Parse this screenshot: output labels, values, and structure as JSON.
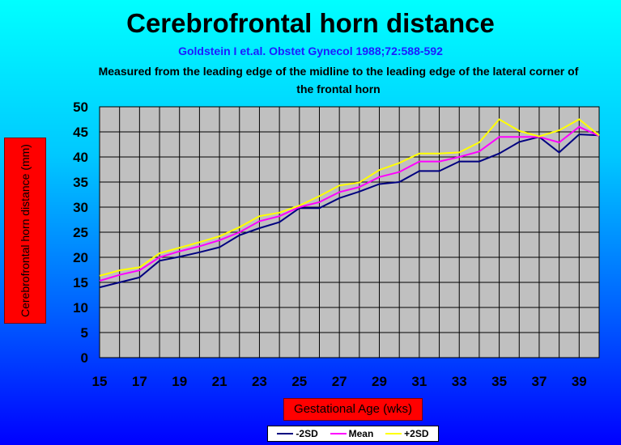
{
  "chart_data": {
    "type": "line",
    "title": "Cerebrofrontal horn distance",
    "subtitle": "Goldstein I et.al. Obstet Gynecol 1988;72:588-592",
    "description": "Measured from the leading edge of the midline to the leading edge of the lateral corner of the frontal horn",
    "ylabel": "Cerebrofrontal horn distance (mm)",
    "xlabel": "Gestational Age (wks)",
    "ylim": [
      0,
      50
    ],
    "xlim": [
      15,
      40
    ],
    "y_ticks": [
      0,
      5,
      10,
      15,
      20,
      25,
      30,
      35,
      40,
      45,
      50
    ],
    "x_ticks": [
      15,
      17,
      19,
      21,
      23,
      25,
      27,
      29,
      31,
      33,
      35,
      37,
      39
    ],
    "grid": true,
    "legend_position": "bottom",
    "x": [
      15,
      16,
      17,
      18,
      19,
      20,
      21,
      22,
      23,
      24,
      25,
      26,
      27,
      28,
      29,
      30,
      31,
      32,
      33,
      34,
      35,
      36,
      37,
      38,
      39,
      40
    ],
    "series": [
      {
        "name": "-2SD",
        "color": "#000080",
        "values": [
          14,
          15,
          16,
          19.3,
          20.1,
          21,
          22,
          24.4,
          25.8,
          27,
          29.8,
          29.8,
          31.8,
          33.1,
          34.6,
          35,
          37.2,
          37.2,
          39.1,
          39.1,
          40.7,
          43,
          44,
          40.9,
          44.5,
          44.3
        ]
      },
      {
        "name": "Mean",
        "color": "#ff00ff",
        "values": [
          15.3,
          16.5,
          17.4,
          20,
          21.2,
          22.2,
          23.4,
          25,
          27.2,
          28.2,
          30,
          31,
          33,
          34,
          36,
          37,
          39.1,
          39.1,
          40,
          41.1,
          44,
          44,
          44,
          42.9,
          46,
          44.2
        ]
      },
      {
        "name": "+2SD",
        "color": "#ffff00",
        "values": [
          16.3,
          17.4,
          18,
          20.8,
          21.9,
          23,
          24.2,
          26,
          28.2,
          28.9,
          30.3,
          32.2,
          34.3,
          34.9,
          37.4,
          38.8,
          40.7,
          40.7,
          40.9,
          42.9,
          47.5,
          45.2,
          44.1,
          45.3,
          47.5,
          44.3
        ]
      }
    ]
  }
}
